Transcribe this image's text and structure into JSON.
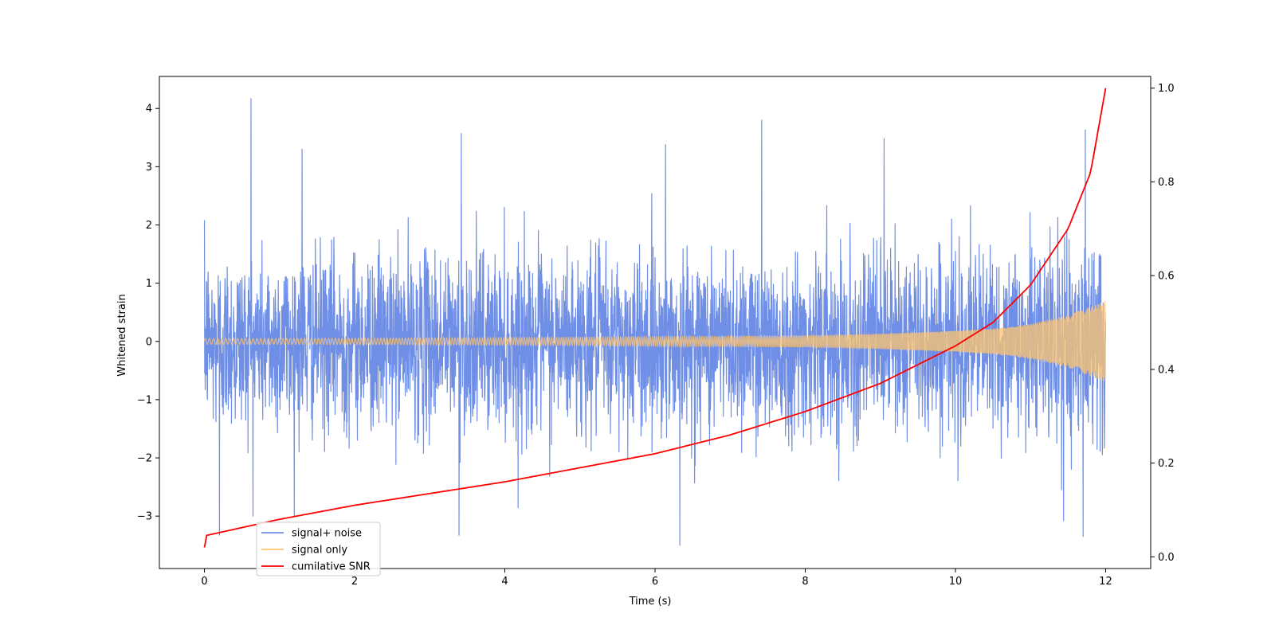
{
  "chart_data": {
    "type": "line",
    "xlabel": "Time (s)",
    "ylabel": "Whitened strain",
    "y2label": "",
    "xlim": [
      -0.6,
      12.6
    ],
    "ylim": [
      -3.9,
      4.55
    ],
    "y2lim": [
      -0.025,
      1.025
    ],
    "xticks": [
      0,
      2,
      4,
      6,
      8,
      10,
      12
    ],
    "yticks": [
      -3,
      -2,
      -1,
      0,
      1,
      2,
      3,
      4
    ],
    "y2ticks": [
      0.0,
      0.2,
      0.4,
      0.6,
      0.8,
      1.0
    ],
    "legend_position": "lower-left",
    "grid": false,
    "series": [
      {
        "name": "signal+ noise",
        "color": "#6f8fe6",
        "axis": "left",
        "description_x": [
          0,
          12
        ],
        "peak_points": [
          {
            "x": 0.62,
            "y": 4.17
          },
          {
            "x": 7.42,
            "y": 3.8
          },
          {
            "x": 11.73,
            "y": 3.63
          },
          {
            "x": 3.42,
            "y": 3.57
          },
          {
            "x": 6.14,
            "y": 3.38
          },
          {
            "x": 9.05,
            "y": 3.48
          },
          {
            "x": 1.3,
            "y": 3.3
          },
          {
            "x": 6.33,
            "y": -3.5
          },
          {
            "x": 0.2,
            "y": -3.33
          },
          {
            "x": 3.39,
            "y": -3.33
          },
          {
            "x": 11.7,
            "y": -3.35
          },
          {
            "x": 11.44,
            "y": -3.08
          }
        ]
      },
      {
        "name": "signal only",
        "color": "#ffc46f",
        "axis": "left",
        "amplitude_x": [
          0,
          1,
          2,
          3,
          4,
          5,
          6,
          7,
          8,
          9,
          10,
          10.5,
          11,
          11.5,
          12
        ],
        "amplitude_y": [
          0.05,
          0.05,
          0.055,
          0.06,
          0.065,
          0.07,
          0.08,
          0.09,
          0.1,
          0.13,
          0.18,
          0.22,
          0.3,
          0.45,
          0.7
        ]
      },
      {
        "name": "cumilative SNR",
        "color": "#ff0000",
        "axis": "right",
        "x": [
          0,
          0.01,
          1,
          2,
          3,
          4,
          5,
          6,
          7,
          8,
          9,
          10,
          10.5,
          11,
          11.5,
          11.8,
          12
        ],
        "y": [
          0.02,
          0.045,
          0.08,
          0.11,
          0.135,
          0.16,
          0.19,
          0.22,
          0.26,
          0.31,
          0.37,
          0.45,
          0.5,
          0.58,
          0.7,
          0.82,
          1.0
        ]
      }
    ]
  }
}
